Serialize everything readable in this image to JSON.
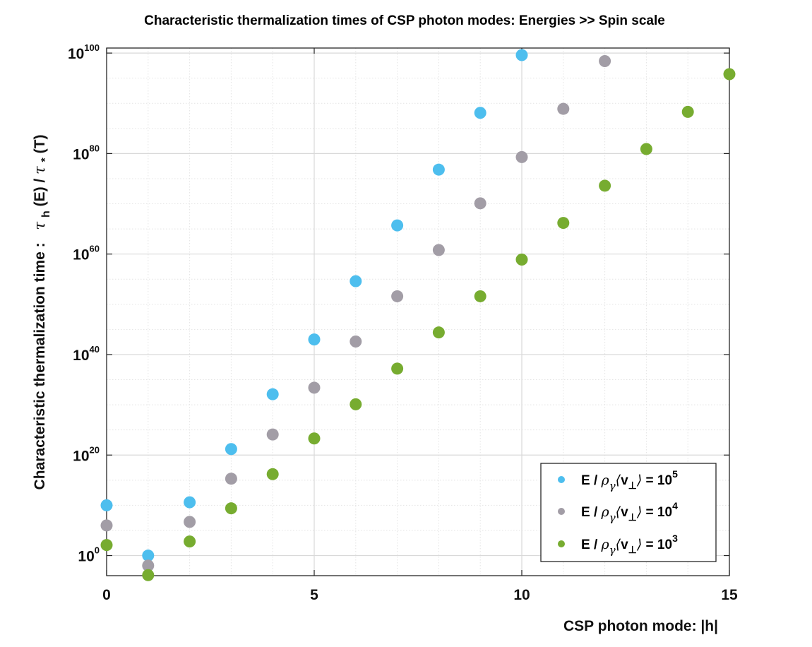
{
  "chart_data": {
    "type": "scatter",
    "title": "Characteristic thermalization times of CSP photon modes: Energies >> Spin scale",
    "xlabel": "CSP photon mode: |h|",
    "ylabel": {
      "prefix": "Characteristic thermalization time :",
      "tau": "τ",
      "sub_h": "h",
      "middle": " (E) / ",
      "tau2": "τ",
      "sub_star": "*",
      "suffix": "(T)"
    },
    "xlim": [
      0,
      15
    ],
    "ylim_log10": [
      -4,
      101
    ],
    "yscale": "log",
    "grid": true,
    "minor_grid": true,
    "x_ticks": [
      {
        "value": 0,
        "label": "0"
      },
      {
        "value": 5,
        "label": "5"
      },
      {
        "value": 10,
        "label": "10"
      },
      {
        "value": 15,
        "label": "15"
      }
    ],
    "y_ticks": [
      {
        "exp": 0,
        "base": "10",
        "sup": "0"
      },
      {
        "exp": 20,
        "base": "10",
        "sup": "20"
      },
      {
        "exp": 40,
        "base": "10",
        "sup": "40"
      },
      {
        "exp": 60,
        "base": "10",
        "sup": "60"
      },
      {
        "exp": 80,
        "base": "10",
        "sup": "80"
      },
      {
        "exp": 100,
        "base": "10",
        "sup": "100"
      }
    ],
    "legend_position": "bottom-right",
    "series": [
      {
        "name": "E / ρ_γ⟨v_⊥⟩ = 10^5",
        "legend": {
          "e": "E / ",
          "rho": "ρ",
          "gamma": "γ",
          "v": "v",
          "perp": "⊥",
          "eq": " = 10",
          "exp": "5"
        },
        "color": "#4DBEEE",
        "x": [
          0,
          1,
          2,
          3,
          4,
          5,
          6,
          7,
          8,
          9,
          10
        ],
        "log10_y": [
          10,
          0,
          10.6,
          21.2,
          32.1,
          43.0,
          54.6,
          65.7,
          76.8,
          88.1,
          99.6
        ]
      },
      {
        "name": "E / ρ_γ⟨v_⊥⟩ = 10^4",
        "legend": {
          "e": "E / ",
          "rho": "ρ",
          "gamma": "γ",
          "v": "v",
          "perp": "⊥",
          "eq": " = 10",
          "exp": "4"
        },
        "color": "#A29DA6",
        "x": [
          0,
          1,
          2,
          3,
          4,
          5,
          6,
          7,
          8,
          9,
          10,
          11,
          12
        ],
        "log10_y": [
          6.0,
          -2.0,
          6.7,
          15.3,
          24.1,
          33.4,
          42.6,
          51.6,
          60.8,
          70.1,
          79.3,
          88.9,
          98.4
        ]
      },
      {
        "name": "E / ρ_γ⟨v_⊥⟩ = 10^3",
        "legend": {
          "e": "E / ",
          "rho": "ρ",
          "gamma": "γ",
          "v": "v",
          "perp": "⊥",
          "eq": " = 10",
          "exp": "3"
        },
        "color": "#77AC30",
        "x": [
          0,
          1,
          2,
          3,
          4,
          5,
          6,
          7,
          8,
          9,
          10,
          11,
          12,
          13,
          14,
          15
        ],
        "log10_y": [
          2.1,
          -3.9,
          2.8,
          9.4,
          16.2,
          23.3,
          30.1,
          37.2,
          44.4,
          51.6,
          58.9,
          66.2,
          73.6,
          80.9,
          88.3,
          95.8
        ]
      }
    ]
  }
}
